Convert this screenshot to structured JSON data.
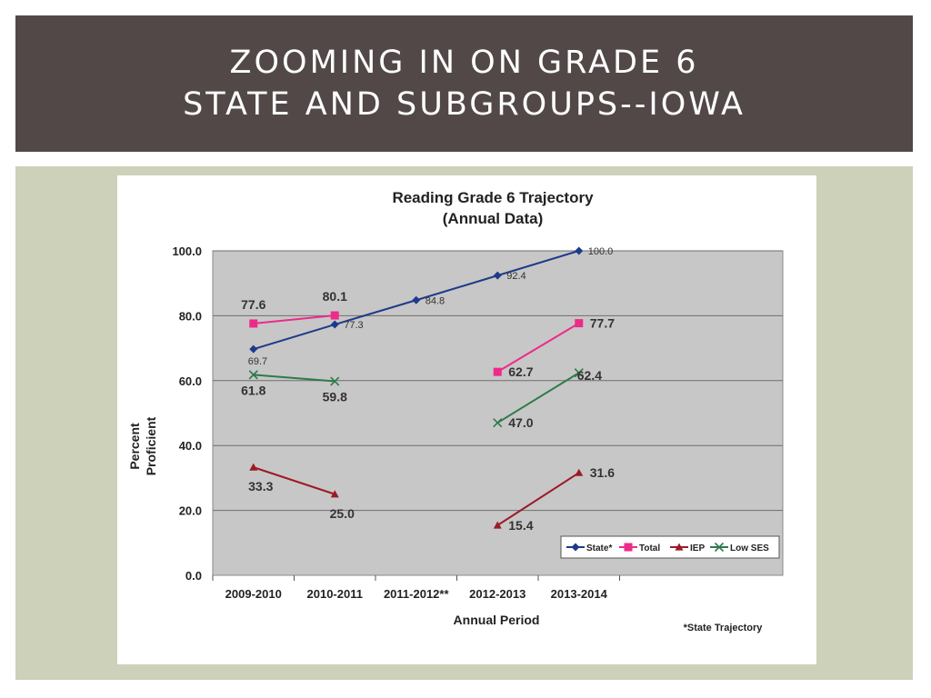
{
  "slide": {
    "title_line1": "ZOOMING IN ON GRADE 6",
    "title_line2": "STATE AND SUBGROUPS--IOWA"
  },
  "colors": {
    "title_bg": "#524848",
    "panel_bg": "#cdd1b9",
    "plot_bg": "#c7c7c7"
  },
  "chart_data": {
    "type": "line",
    "title": "Reading Grade 6 Trajectory",
    "subtitle": "(Annual Data)",
    "xlabel": "Annual Period",
    "ylabel_line1": "Percent",
    "ylabel_line2": "Proficient",
    "footnote": "*State Trajectory",
    "categories": [
      "2009-2010",
      "2010-2011",
      "2011-2012**",
      "2012-2013",
      "2013-2014"
    ],
    "yticks": [
      "0.0",
      "20.0",
      "40.0",
      "60.0",
      "80.0",
      "100.0"
    ],
    "ylim": [
      0,
      100
    ],
    "grid": true,
    "legend_position": "bottom-right",
    "series": [
      {
        "name": "State*",
        "color": "#1f3a8a",
        "marker": "diamond",
        "values": [
          69.7,
          77.3,
          84.8,
          92.4,
          100.0
        ],
        "labels": [
          "69.7",
          "77.3",
          "84.8",
          "92.4",
          "100.0"
        ]
      },
      {
        "name": "Total",
        "color": "#ee2a8a",
        "marker": "square",
        "values": [
          77.6,
          80.1,
          null,
          62.7,
          77.7
        ],
        "labels": [
          "77.6",
          "80.1",
          "",
          "62.7",
          "77.7"
        ]
      },
      {
        "name": "IEP",
        "color": "#9b1b25",
        "marker": "triangle",
        "values": [
          33.3,
          25.0,
          null,
          15.4,
          31.6
        ],
        "labels": [
          "33.3",
          "25.0",
          "",
          "15.4",
          "31.6"
        ]
      },
      {
        "name": "Low SES",
        "color": "#2e7a4a",
        "marker": "x",
        "values": [
          61.8,
          59.8,
          null,
          47.0,
          62.4
        ],
        "labels": [
          "61.8",
          "59.8",
          "",
          "47.0",
          "62.4"
        ]
      }
    ]
  }
}
